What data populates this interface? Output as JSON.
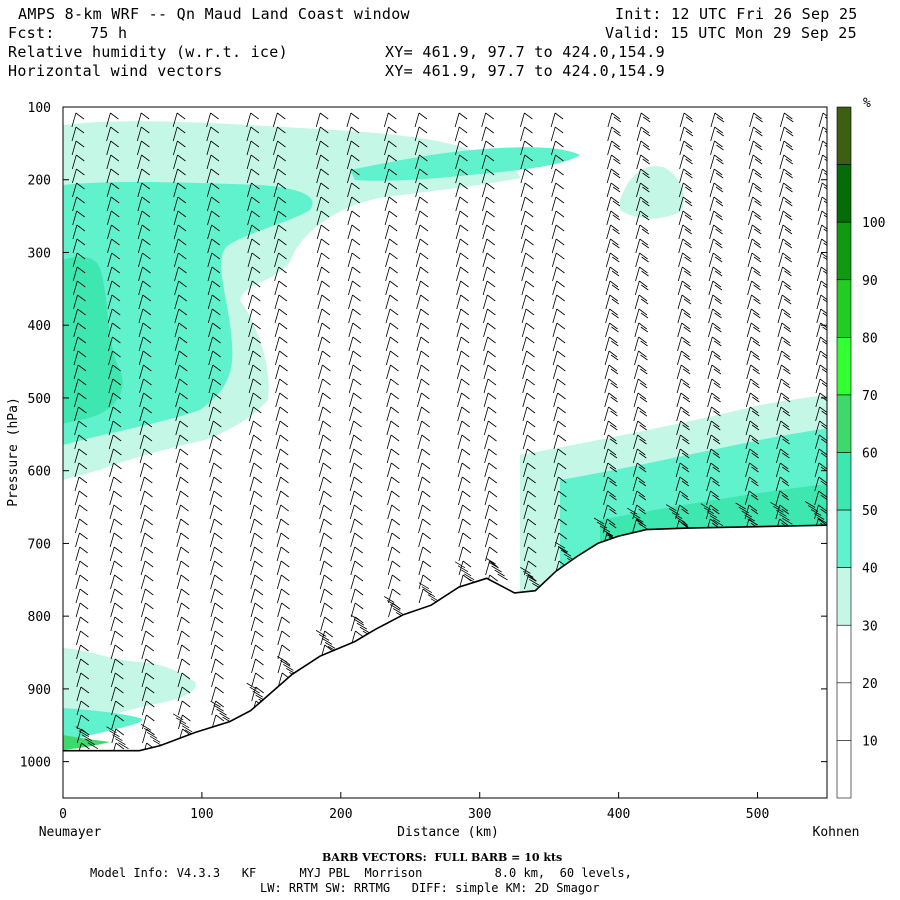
{
  "header": {
    "title": "AMPS 8-km WRF -- Qn Maud Land Coast window",
    "fcst_label": "Fcst:",
    "fcst_value": "75 h",
    "init": "Init: 12 UTC Fri 26 Sep 25",
    "valid": "Valid: 15 UTC Mon 29 Sep 25",
    "field1": "Relative humidity (w.r.t. ice)",
    "field1_xy": "XY= 461.9, 97.7 to 424.0,154.9",
    "field2": "Horizontal wind vectors",
    "field2_xy": "XY= 461.9, 97.7 to 424.0,154.9"
  },
  "footer": {
    "barb_note": "BARB VECTORS:  FULL BARB = 10 kts",
    "model_line": "Model Info: V4.3.3   KF      MYJ PBL  Morrison          8.0 km,  60 levels,",
    "physics_line": "LW: RRTM SW: RRTMG   DIFF: simple KM: 2D Smagor"
  },
  "chart_data": {
    "type": "heatmap",
    "title": "Relative humidity (w.r.t. ice) with horizontal wind vectors",
    "xlabel": "Distance (km)",
    "ylabel": "Pressure (hPa)",
    "x_left_label": "Neumayer",
    "x_right_label": "Kohnen",
    "xlim": [
      0,
      550
    ],
    "ylim": [
      1050,
      100
    ],
    "xticks": [
      0,
      100,
      200,
      300,
      400,
      500
    ],
    "yticks": [
      100,
      200,
      300,
      400,
      500,
      600,
      700,
      800,
      900,
      1000
    ],
    "colorbar": {
      "unit": "%",
      "levels": [
        10,
        20,
        30,
        40,
        50,
        60,
        70,
        80,
        90,
        100
      ],
      "colors": [
        "#ffffff",
        "#ffffff",
        "#ffffff",
        "#c4f7e6",
        "#5ff2cc",
        "#3ee6b0",
        "#3fd86a",
        "#33ff33",
        "#22cc22",
        "#119911",
        "#066d06",
        "#3d5f10"
      ]
    },
    "terrain_surface_hPa": [
      [
        0,
        985
      ],
      [
        20,
        985
      ],
      [
        55,
        985
      ],
      [
        70,
        978
      ],
      [
        95,
        960
      ],
      [
        120,
        945
      ],
      [
        135,
        930
      ],
      [
        150,
        905
      ],
      [
        165,
        880
      ],
      [
        185,
        855
      ],
      [
        210,
        835
      ],
      [
        225,
        818
      ],
      [
        245,
        798
      ],
      [
        265,
        785
      ],
      [
        285,
        760
      ],
      [
        305,
        748
      ],
      [
        325,
        768
      ],
      [
        340,
        765
      ],
      [
        355,
        738
      ],
      [
        370,
        718
      ],
      [
        385,
        700
      ],
      [
        400,
        690
      ],
      [
        420,
        681
      ],
      [
        450,
        679
      ],
      [
        500,
        677
      ],
      [
        550,
        675
      ]
    ],
    "rh_regions": [
      {
        "range": "30-40",
        "description": "upper-level moist layer, 120-250 hPa across 0-360 km"
      },
      {
        "range": "40-50",
        "description": "mid-level moist layer, 200-560 hPa near Neumayer (0-150 km)"
      },
      {
        "range": "30-50",
        "description": "boundary layer near surface 0-120 km and 400-550 km"
      },
      {
        "range": "50-80",
        "description": "thin saturated layer above plateau surface, 400-550 km"
      }
    ],
    "wind_barb_columns_km": [
      15,
      37,
      62,
      85,
      112,
      138,
      160,
      188,
      213,
      237,
      262,
      288,
      310,
      335,
      360,
      388,
      412,
      440,
      465,
      490,
      515,
      540
    ]
  }
}
